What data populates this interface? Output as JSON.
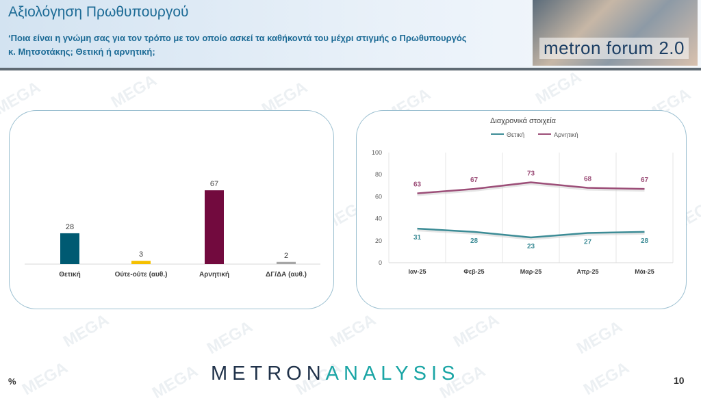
{
  "header": {
    "title": "Αξιολόγηση Πρωθυπουργού",
    "question": "‘Ποια είναι η γνώμη σας για τον τρόπο με τον οποίο ασκεί τα καθήκοντά του μέχρι στιγμής ο Πρωθυπουργός κ. Μητσοτάκης; Θετική ή αρνητική;",
    "logo_text": "metron forum 2.0"
  },
  "watermark_text": "MEGA",
  "footer": {
    "brand_part1": "METRON",
    "brand_part2": "ANALYSIS",
    "percent_sign": "%",
    "page_number": "10"
  },
  "colors": {
    "positive": "#005a72",
    "neither": "#f5c000",
    "negative": "#720a3e",
    "dk": "#a6a6a6",
    "line_positive": "#3c8c96",
    "line_negative": "#9c4e78",
    "title_blue": "#1b6a95"
  },
  "chart_data": [
    {
      "type": "bar",
      "categories": [
        "Θετική",
        "Ούτε-ούτε (αυθ.)",
        "Αρνητική",
        "ΔΓ/ΔΑ (αυθ.)"
      ],
      "values": [
        28,
        3,
        67,
        2
      ]
    },
    {
      "type": "line",
      "title": "Διαχρονικά στοιχεία",
      "x": [
        "Ιαν-25",
        "Φεβ-25",
        "Μαρ-25",
        "Απρ-25",
        "Μάι-25"
      ],
      "series": [
        {
          "name": "Θετική",
          "values": [
            31,
            28,
            23,
            27,
            28
          ]
        },
        {
          "name": "Αρνητική",
          "values": [
            63,
            67,
            73,
            68,
            67
          ]
        }
      ],
      "ylim": [
        0,
        100
      ],
      "yticks": [
        "0",
        "20",
        "40",
        "60",
        "80",
        "100"
      ],
      "legend": "top",
      "grid": "vertical"
    }
  ]
}
